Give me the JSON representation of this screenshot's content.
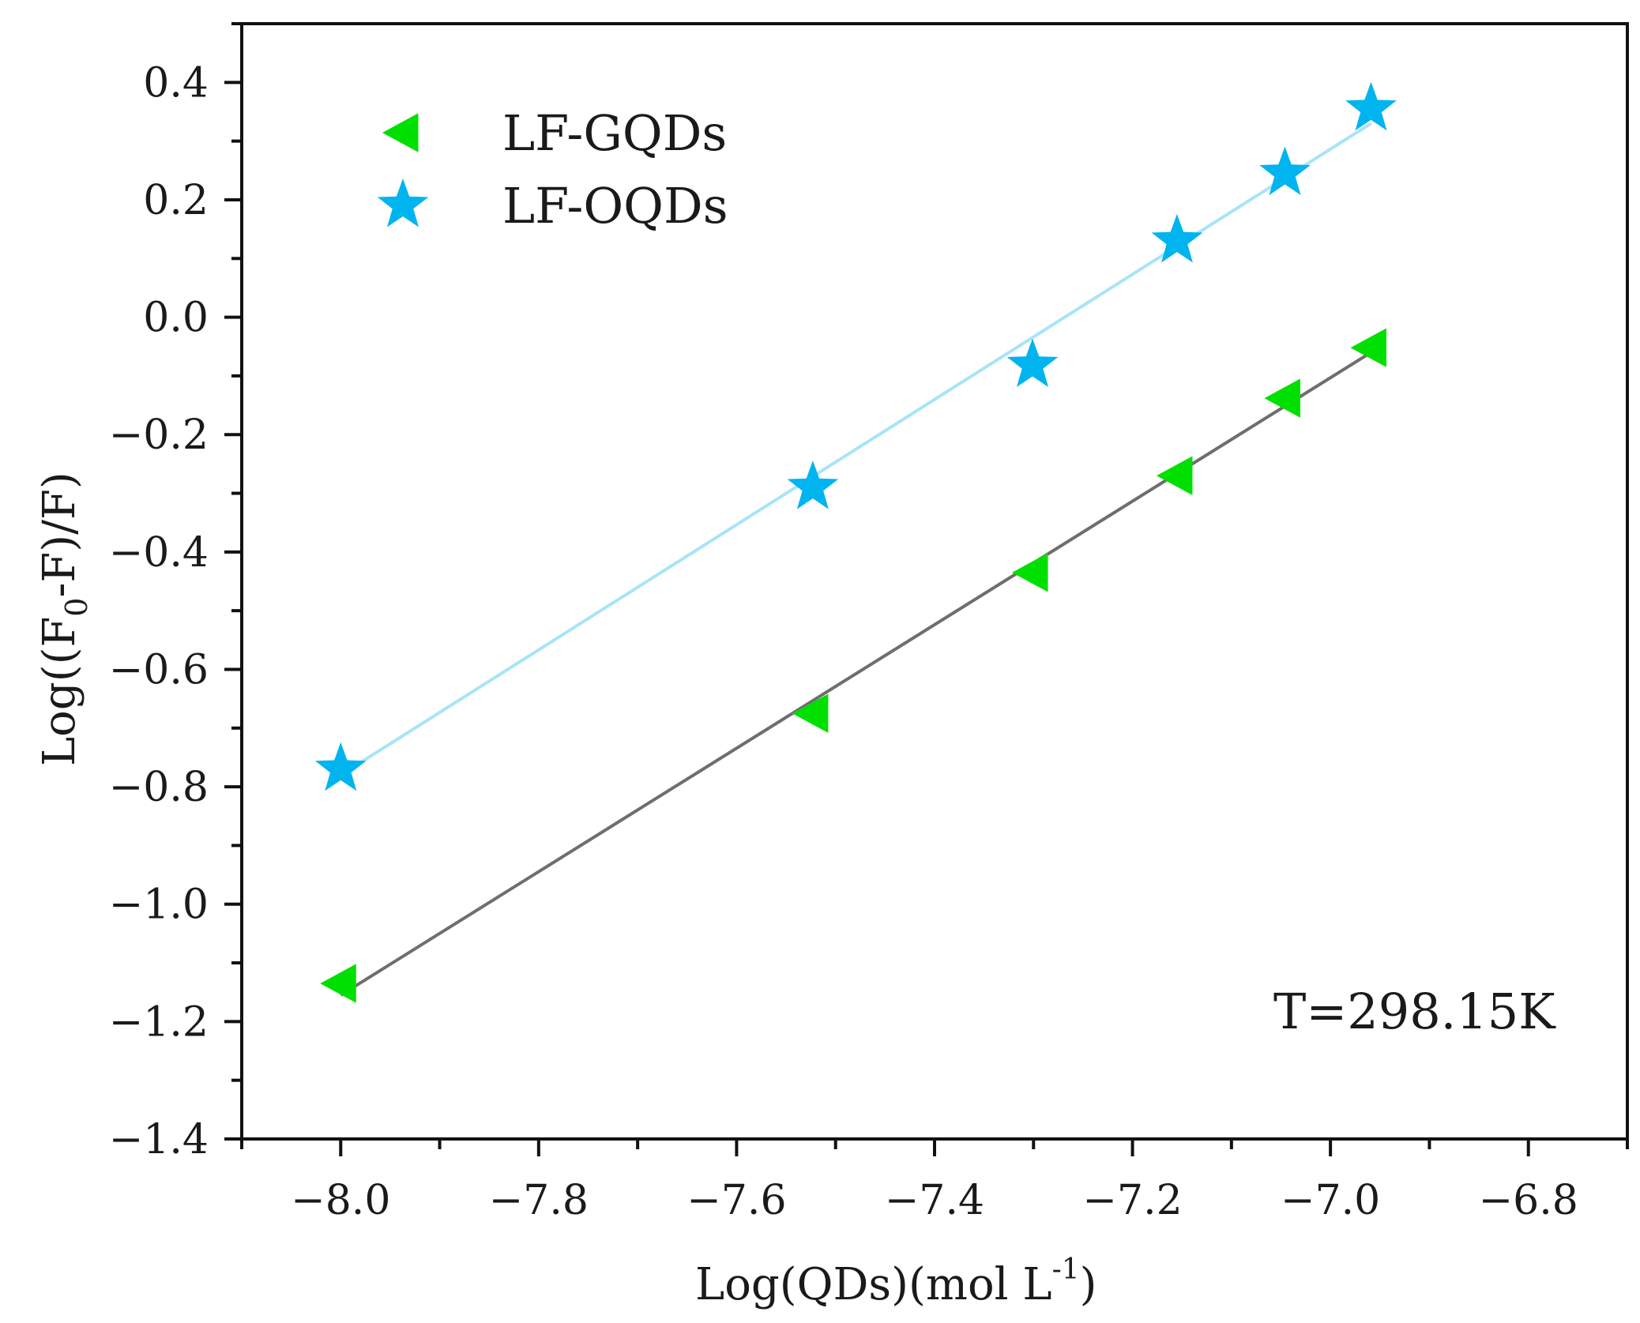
{
  "chart_data": {
    "type": "scatter",
    "title": "",
    "xlabel_main": "Log(QDs)(mol L",
    "xlabel_sup": "-1",
    "xlabel_close": ")",
    "ylabel_pre": "Log((F",
    "ylabel_sub": "0",
    "ylabel_post": "-F)/F)",
    "xlim": [
      -8.1,
      -6.7
    ],
    "ylim": [
      -1.4,
      0.5
    ],
    "x_ticks": [
      -8.0,
      -7.8,
      -7.6,
      -7.4,
      -7.2,
      -7.0,
      -6.8
    ],
    "x_tick_labels": [
      "-8.0",
      "-7.8",
      "-7.6",
      "-7.4",
      "-7.2",
      "-7.0",
      "-6.8"
    ],
    "x_minor_step": 0.1,
    "y_ticks": [
      0.4,
      0.2,
      0.0,
      -0.2,
      -0.4,
      -0.6,
      -0.8,
      -1.0,
      -1.2,
      -1.4
    ],
    "y_tick_labels": [
      "0.4",
      "0.2",
      "0.0",
      "-0.2",
      "-0.4",
      "-0.6",
      "-0.8",
      "-1.0",
      "-1.2",
      "-1.4"
    ],
    "y_minor_step": 0.1,
    "legend_position": "top-left",
    "annotation": "T=298.15K",
    "series": [
      {
        "name": "LF-GQDs",
        "marker": "left-triangle",
        "color": "#00e000",
        "fit_color": "#6e6e6e",
        "x": [
          -8.0,
          -7.523,
          -7.301,
          -7.155,
          -7.046,
          -6.959
        ],
        "y": [
          -1.135,
          -0.675,
          -0.435,
          -0.27,
          -0.138,
          -0.052
        ],
        "fit": {
          "x": [
            -8.0,
            -6.959
          ],
          "y": [
            -1.155,
            -0.06
          ]
        }
      },
      {
        "name": "LF-OQDs",
        "marker": "star",
        "color": "#00b4f0",
        "fit_color": "#a8e4f8",
        "x": [
          -8.0,
          -7.523,
          -7.301,
          -7.155,
          -7.046,
          -6.959
        ],
        "y": [
          -0.77,
          -0.29,
          -0.082,
          0.13,
          0.245,
          0.355
        ],
        "fit": {
          "x": [
            -8.0,
            -6.959
          ],
          "y": [
            -0.78,
            0.33
          ]
        }
      }
    ]
  }
}
